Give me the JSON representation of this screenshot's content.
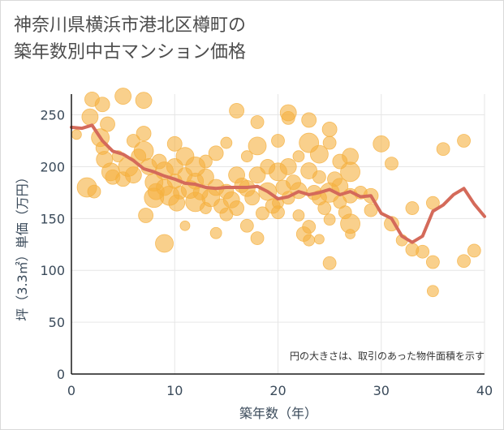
{
  "header": {
    "title_line1": "神奈川県横浜市港北区樽町の",
    "title_line2": "築年数別中古マンション価格"
  },
  "chart_data": {
    "type": "scatter",
    "title": "神奈川県横浜市港北区樽町の築年数別中古マンション価格",
    "xlabel": "築年数（年）",
    "ylabel": "坪（3.3㎡）単価（万円）",
    "xlim": [
      0,
      40
    ],
    "ylim": [
      0,
      270
    ],
    "xticks": [
      0,
      10,
      20,
      30,
      40
    ],
    "yticks": [
      0,
      50,
      100,
      150,
      200,
      250
    ],
    "grid": true,
    "annotation": "円の大きさは、取引のあった物件面積を示す",
    "colors": {
      "bubble_fill": "#f5b040",
      "trend_line": "#d46a5a",
      "grid": "#e6e6e6",
      "axis": "#1a1a1a"
    },
    "series": [
      {
        "kind": "bubbles",
        "points": [
          {
            "x": 0.5,
            "y": 231,
            "s": 6
          },
          {
            "x": 1.5,
            "y": 180,
            "s": 12
          },
          {
            "x": 1.8,
            "y": 248,
            "s": 10
          },
          {
            "x": 2,
            "y": 265,
            "s": 9
          },
          {
            "x": 2.2,
            "y": 176,
            "s": 8
          },
          {
            "x": 2.8,
            "y": 228,
            "s": 11
          },
          {
            "x": 3,
            "y": 260,
            "s": 9
          },
          {
            "x": 3,
            "y": 218,
            "s": 8
          },
          {
            "x": 3.2,
            "y": 207,
            "s": 10
          },
          {
            "x": 3.5,
            "y": 241,
            "s": 9
          },
          {
            "x": 3.8,
            "y": 195,
            "s": 11
          },
          {
            "x": 4,
            "y": 190,
            "s": 9
          },
          {
            "x": 4.5,
            "y": 210,
            "s": 7
          },
          {
            "x": 5,
            "y": 268,
            "s": 10
          },
          {
            "x": 5,
            "y": 188,
            "s": 9
          },
          {
            "x": 5.5,
            "y": 200,
            "s": 12
          },
          {
            "x": 6,
            "y": 225,
            "s": 8
          },
          {
            "x": 6,
            "y": 192,
            "s": 10
          },
          {
            "x": 6.5,
            "y": 210,
            "s": 9
          },
          {
            "x": 7,
            "y": 264,
            "s": 10
          },
          {
            "x": 7,
            "y": 232,
            "s": 9
          },
          {
            "x": 7,
            "y": 215,
            "s": 12
          },
          {
            "x": 7.2,
            "y": 153,
            "s": 9
          },
          {
            "x": 7.5,
            "y": 200,
            "s": 10
          },
          {
            "x": 8,
            "y": 185,
            "s": 11
          },
          {
            "x": 8,
            "y": 170,
            "s": 12
          },
          {
            "x": 8.2,
            "y": 176,
            "s": 10
          },
          {
            "x": 8.5,
            "y": 205,
            "s": 9
          },
          {
            "x": 9,
            "y": 196,
            "s": 11
          },
          {
            "x": 9,
            "y": 180,
            "s": 10
          },
          {
            "x": 9,
            "y": 126,
            "s": 11
          },
          {
            "x": 9.5,
            "y": 172,
            "s": 12
          },
          {
            "x": 10,
            "y": 222,
            "s": 9
          },
          {
            "x": 10,
            "y": 200,
            "s": 10
          },
          {
            "x": 10,
            "y": 186,
            "s": 9
          },
          {
            "x": 10.2,
            "y": 165,
            "s": 10
          },
          {
            "x": 10.5,
            "y": 175,
            "s": 8
          },
          {
            "x": 11,
            "y": 210,
            "s": 11
          },
          {
            "x": 11,
            "y": 192,
            "s": 9
          },
          {
            "x": 11,
            "y": 143,
            "s": 6
          },
          {
            "x": 11.5,
            "y": 178,
            "s": 11
          },
          {
            "x": 12,
            "y": 200,
            "s": 12
          },
          {
            "x": 12,
            "y": 186,
            "s": 10
          },
          {
            "x": 12,
            "y": 166,
            "s": 12
          },
          {
            "x": 12.5,
            "y": 175,
            "s": 9
          },
          {
            "x": 13,
            "y": 205,
            "s": 8
          },
          {
            "x": 13,
            "y": 190,
            "s": 10
          },
          {
            "x": 13,
            "y": 160,
            "s": 7
          },
          {
            "x": 13.5,
            "y": 170,
            "s": 11
          },
          {
            "x": 14,
            "y": 213,
            "s": 9
          },
          {
            "x": 14,
            "y": 180,
            "s": 10
          },
          {
            "x": 14,
            "y": 136,
            "s": 7
          },
          {
            "x": 14.5,
            "y": 162,
            "s": 9
          },
          {
            "x": 15,
            "y": 223,
            "s": 7
          },
          {
            "x": 15,
            "y": 176,
            "s": 9
          },
          {
            "x": 15,
            "y": 154,
            "s": 8
          },
          {
            "x": 15.5,
            "y": 168,
            "s": 10
          },
          {
            "x": 16,
            "y": 254,
            "s": 9
          },
          {
            "x": 16,
            "y": 192,
            "s": 10
          },
          {
            "x": 16,
            "y": 160,
            "s": 9
          },
          {
            "x": 16.5,
            "y": 182,
            "s": 9
          },
          {
            "x": 17,
            "y": 210,
            "s": 7
          },
          {
            "x": 17,
            "y": 179,
            "s": 10
          },
          {
            "x": 17,
            "y": 143,
            "s": 8
          },
          {
            "x": 17.5,
            "y": 170,
            "s": 9
          },
          {
            "x": 18,
            "y": 243,
            "s": 8
          },
          {
            "x": 18,
            "y": 220,
            "s": 11
          },
          {
            "x": 18,
            "y": 192,
            "s": 10
          },
          {
            "x": 18,
            "y": 131,
            "s": 8
          },
          {
            "x": 18.5,
            "y": 155,
            "s": 8
          },
          {
            "x": 19,
            "y": 200,
            "s": 9
          },
          {
            "x": 19,
            "y": 176,
            "s": 11
          },
          {
            "x": 19.5,
            "y": 162,
            "s": 9
          },
          {
            "x": 20,
            "y": 225,
            "s": 8
          },
          {
            "x": 20,
            "y": 195,
            "s": 11
          },
          {
            "x": 20,
            "y": 165,
            "s": 7
          },
          {
            "x": 20,
            "y": 156,
            "s": 8
          },
          {
            "x": 20.5,
            "y": 180,
            "s": 9
          },
          {
            "x": 21,
            "y": 252,
            "s": 10
          },
          {
            "x": 21,
            "y": 247,
            "s": 8
          },
          {
            "x": 21,
            "y": 200,
            "s": 10
          },
          {
            "x": 21,
            "y": 170,
            "s": 8
          },
          {
            "x": 21.5,
            "y": 185,
            "s": 9
          },
          {
            "x": 22,
            "y": 210,
            "s": 7
          },
          {
            "x": 22,
            "y": 177,
            "s": 10
          },
          {
            "x": 22,
            "y": 153,
            "s": 7
          },
          {
            "x": 22.5,
            "y": 135,
            "s": 9
          },
          {
            "x": 23,
            "y": 245,
            "s": 9
          },
          {
            "x": 23,
            "y": 223,
            "s": 12
          },
          {
            "x": 23,
            "y": 196,
            "s": 10
          },
          {
            "x": 23,
            "y": 142,
            "s": 8
          },
          {
            "x": 23,
            "y": 129,
            "s": 7
          },
          {
            "x": 23.5,
            "y": 175,
            "s": 9
          },
          {
            "x": 24,
            "y": 212,
            "s": 11
          },
          {
            "x": 24,
            "y": 190,
            "s": 8
          },
          {
            "x": 24,
            "y": 170,
            "s": 9
          },
          {
            "x": 24,
            "y": 130,
            "s": 6
          },
          {
            "x": 24.5,
            "y": 160,
            "s": 8
          },
          {
            "x": 25,
            "y": 236,
            "s": 9
          },
          {
            "x": 25,
            "y": 223,
            "s": 8
          },
          {
            "x": 25,
            "y": 175,
            "s": 12
          },
          {
            "x": 25,
            "y": 149,
            "s": 7
          },
          {
            "x": 25,
            "y": 107,
            "s": 8
          },
          {
            "x": 25.5,
            "y": 188,
            "s": 9
          },
          {
            "x": 26,
            "y": 205,
            "s": 9
          },
          {
            "x": 26,
            "y": 181,
            "s": 10
          },
          {
            "x": 26,
            "y": 166,
            "s": 8
          },
          {
            "x": 26.5,
            "y": 156,
            "s": 8
          },
          {
            "x": 27,
            "y": 210,
            "s": 10
          },
          {
            "x": 27,
            "y": 195,
            "s": 12
          },
          {
            "x": 27,
            "y": 172,
            "s": 9
          },
          {
            "x": 27,
            "y": 145,
            "s": 12
          },
          {
            "x": 27,
            "y": 135,
            "s": 6
          },
          {
            "x": 28,
            "y": 175,
            "s": 8
          },
          {
            "x": 29,
            "y": 172,
            "s": 9
          },
          {
            "x": 29,
            "y": 158,
            "s": 8
          },
          {
            "x": 30,
            "y": 222,
            "s": 10
          },
          {
            "x": 31,
            "y": 203,
            "s": 8
          },
          {
            "x": 31,
            "y": 145,
            "s": 9
          },
          {
            "x": 32,
            "y": 129,
            "s": 7
          },
          {
            "x": 33,
            "y": 160,
            "s": 8
          },
          {
            "x": 33,
            "y": 120,
            "s": 8
          },
          {
            "x": 34,
            "y": 118,
            "s": 8
          },
          {
            "x": 35,
            "y": 165,
            "s": 8
          },
          {
            "x": 35,
            "y": 108,
            "s": 8
          },
          {
            "x": 35,
            "y": 80,
            "s": 7
          },
          {
            "x": 36,
            "y": 217,
            "s": 8
          },
          {
            "x": 38,
            "y": 225,
            "s": 8
          },
          {
            "x": 38,
            "y": 109,
            "s": 8
          },
          {
            "x": 39,
            "y": 119,
            "s": 8
          }
        ]
      },
      {
        "kind": "line",
        "x": [
          0,
          1,
          2,
          3,
          4,
          5,
          6,
          7,
          8,
          9,
          10,
          11,
          12,
          13,
          14,
          15,
          16,
          17,
          18,
          19,
          20,
          21,
          22,
          23,
          24,
          25,
          26,
          27,
          28,
          29,
          30,
          31,
          32,
          33,
          34,
          35,
          36,
          37,
          38,
          39,
          40
        ],
        "y": [
          238,
          237,
          240,
          225,
          215,
          212,
          206,
          198,
          195,
          191,
          188,
          184,
          183,
          180,
          179,
          180,
          180,
          180,
          181,
          176,
          169,
          171,
          176,
          173,
          175,
          178,
          173,
          176,
          171,
          172,
          155,
          150,
          133,
          127,
          133,
          157,
          163,
          173,
          179,
          164,
          152
        ]
      }
    ]
  }
}
